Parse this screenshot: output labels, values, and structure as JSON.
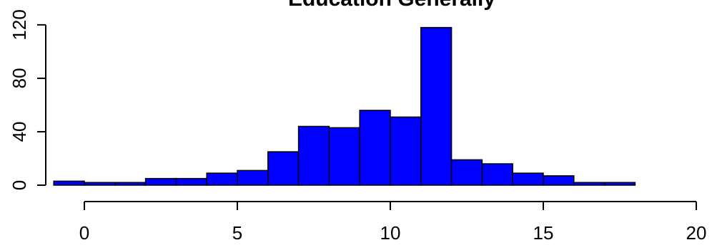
{
  "chart_data": {
    "type": "bar",
    "title": "Education Generally",
    "xlabel": "",
    "ylabel": "",
    "bin_edges": [
      -1,
      0,
      1,
      2,
      3,
      4,
      5,
      6,
      7,
      8,
      9,
      10,
      11,
      12,
      13,
      14,
      15,
      16,
      17,
      18
    ],
    "values": [
      3,
      2,
      2,
      5,
      5,
      9,
      11,
      25,
      44,
      43,
      56,
      51,
      118,
      19,
      16,
      9,
      7,
      2,
      2
    ],
    "xlim": [
      -1,
      20
    ],
    "ylim": [
      0,
      120
    ],
    "x_ticks": [
      0,
      5,
      10,
      15,
      20
    ],
    "y_ticks": [
      0,
      40,
      80,
      120
    ],
    "bar_color": "#0000FF",
    "border_color": "#000000",
    "grid": false,
    "legend": "none"
  }
}
